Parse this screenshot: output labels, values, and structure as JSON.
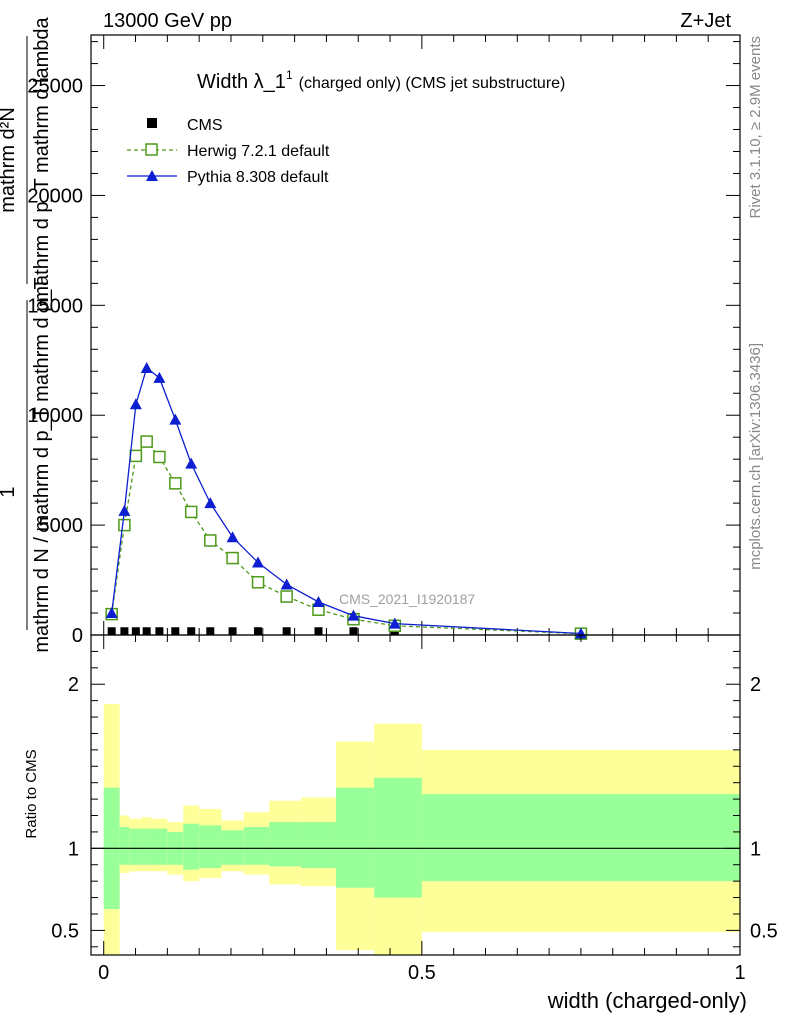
{
  "header": {
    "energy_label": "13000 GeV pp",
    "process_label": "Z+Jet"
  },
  "side_labels": {
    "rivet": "Rivet 3.1.10, ≥ 2.9M events",
    "mcplots": "mcplots.cern.ch [arXiv:1306.3436]"
  },
  "chart_data": [
    {
      "type": "line",
      "title_main": "Width λ_1",
      "title_sup": "1",
      "title_rest": "(charged only) (CMS jet substructure)",
      "analysis_tag": "CMS_2021_I1920187",
      "ylabel_numerator": "mathrm d²N",
      "ylabel_numerator_2": "mathrm d p_T mathrm d lambda",
      "ylabel_denominator_1": "1",
      "ylabel_denominator_2": "mathrm d N / mathrm d p_T mathrm d p_T",
      "xlim": [
        -0.02,
        1.0
      ],
      "ylim": [
        0,
        27300
      ],
      "y_ticks": [
        {
          "value": 0,
          "label": "0"
        },
        {
          "value": 5000,
          "label": "5000"
        },
        {
          "value": 10000,
          "label": "10000"
        },
        {
          "value": 15000,
          "label": "15000"
        },
        {
          "value": 20000,
          "label": "20000"
        },
        {
          "value": 25000,
          "label": "25000"
        }
      ],
      "legend_position": "top-left",
      "series": [
        {
          "name": "CMS",
          "color": "#000000",
          "marker": "square-filled",
          "x": [
            0.0125,
            0.0325,
            0.0505,
            0.0675,
            0.0875,
            0.1125,
            0.1375,
            0.1675,
            0.2025,
            0.2425,
            0.2875,
            0.3375,
            0.3925,
            0.4575
          ],
          "values": [
            80,
            80,
            80,
            80,
            80,
            80,
            80,
            80,
            80,
            80,
            80,
            80,
            80,
            80
          ]
        },
        {
          "name": "Herwig 7.2.1 default",
          "color": "#4d9a1a",
          "marker": "square-open",
          "line": "dashed",
          "x": [
            0.0125,
            0.0325,
            0.0505,
            0.0675,
            0.0875,
            0.1125,
            0.1375,
            0.1675,
            0.2025,
            0.2425,
            0.2875,
            0.3375,
            0.3925,
            0.4575,
            0.75
          ],
          "values": [
            950,
            5000,
            8150,
            8800,
            8100,
            6900,
            5600,
            4300,
            3500,
            2400,
            1750,
            1150,
            720,
            420,
            60
          ]
        },
        {
          "name": "Pythia 8.308 default",
          "color": "#0d1fd0",
          "marker": "triangle-filled",
          "line": "solid",
          "x": [
            0.0125,
            0.0325,
            0.0505,
            0.0675,
            0.0875,
            0.1125,
            0.1375,
            0.1675,
            0.2025,
            0.2425,
            0.2875,
            0.3375,
            0.3925,
            0.4575,
            0.75
          ],
          "values": [
            1000,
            5650,
            10500,
            12150,
            11700,
            9800,
            7800,
            6000,
            4450,
            3300,
            2300,
            1500,
            880,
            520,
            70
          ]
        }
      ]
    },
    {
      "type": "area",
      "ylabel": "Ratio to CMS",
      "xlabel": "width (charged-only)",
      "xlim": [
        -0.02,
        1.0
      ],
      "ylim": [
        0.35,
        2.3
      ],
      "y_ticks": [
        {
          "value": 0.5,
          "label": "0.5"
        },
        {
          "value": 1,
          "label": "1"
        },
        {
          "value": 2,
          "label": "2"
        }
      ],
      "x_ticks": [
        {
          "value": 0,
          "label": "0"
        },
        {
          "value": 0.5,
          "label": "0.5"
        },
        {
          "value": 1,
          "label": "1"
        }
      ],
      "bins": [
        {
          "lo": 0.0,
          "hi": 0.025,
          "green_up": 1.37,
          "green_lo": 0.63,
          "yellow_up": 1.88,
          "yellow_lo": 0.2
        },
        {
          "lo": 0.025,
          "hi": 0.04,
          "green_up": 1.13,
          "green_lo": 0.9,
          "yellow_up": 1.2,
          "yellow_lo": 0.85
        },
        {
          "lo": 0.04,
          "hi": 0.06,
          "green_up": 1.12,
          "green_lo": 0.9,
          "yellow_up": 1.18,
          "yellow_lo": 0.86
        },
        {
          "lo": 0.06,
          "hi": 0.075,
          "green_up": 1.12,
          "green_lo": 0.9,
          "yellow_up": 1.19,
          "yellow_lo": 0.86
        },
        {
          "lo": 0.075,
          "hi": 0.1,
          "green_up": 1.12,
          "green_lo": 0.9,
          "yellow_up": 1.18,
          "yellow_lo": 0.86
        },
        {
          "lo": 0.1,
          "hi": 0.125,
          "green_up": 1.1,
          "green_lo": 0.9,
          "yellow_up": 1.16,
          "yellow_lo": 0.84
        },
        {
          "lo": 0.125,
          "hi": 0.15,
          "green_up": 1.15,
          "green_lo": 0.87,
          "yellow_up": 1.26,
          "yellow_lo": 0.8
        },
        {
          "lo": 0.15,
          "hi": 0.185,
          "green_up": 1.14,
          "green_lo": 0.88,
          "yellow_up": 1.24,
          "yellow_lo": 0.82
        },
        {
          "lo": 0.185,
          "hi": 0.22,
          "green_up": 1.11,
          "green_lo": 0.9,
          "yellow_up": 1.17,
          "yellow_lo": 0.86
        },
        {
          "lo": 0.22,
          "hi": 0.26,
          "green_up": 1.13,
          "green_lo": 0.9,
          "yellow_up": 1.22,
          "yellow_lo": 0.84
        },
        {
          "lo": 0.26,
          "hi": 0.31,
          "green_up": 1.16,
          "green_lo": 0.89,
          "yellow_up": 1.29,
          "yellow_lo": 0.78
        },
        {
          "lo": 0.31,
          "hi": 0.365,
          "green_up": 1.16,
          "green_lo": 0.88,
          "yellow_up": 1.31,
          "yellow_lo": 0.77
        },
        {
          "lo": 0.365,
          "hi": 0.425,
          "green_up": 1.37,
          "green_lo": 0.76,
          "yellow_up": 1.65,
          "yellow_lo": 0.38
        },
        {
          "lo": 0.425,
          "hi": 0.5,
          "green_up": 1.43,
          "green_lo": 0.7,
          "yellow_up": 1.76,
          "yellow_lo": 0.35
        },
        {
          "lo": 0.5,
          "hi": 1.0,
          "green_up": 1.33,
          "green_lo": 0.8,
          "yellow_up": 1.6,
          "yellow_lo": 0.49
        }
      ],
      "reference_line": 1.0,
      "colors": {
        "green_band": "#99ff99",
        "yellow_band": "#ffff99"
      }
    }
  ]
}
